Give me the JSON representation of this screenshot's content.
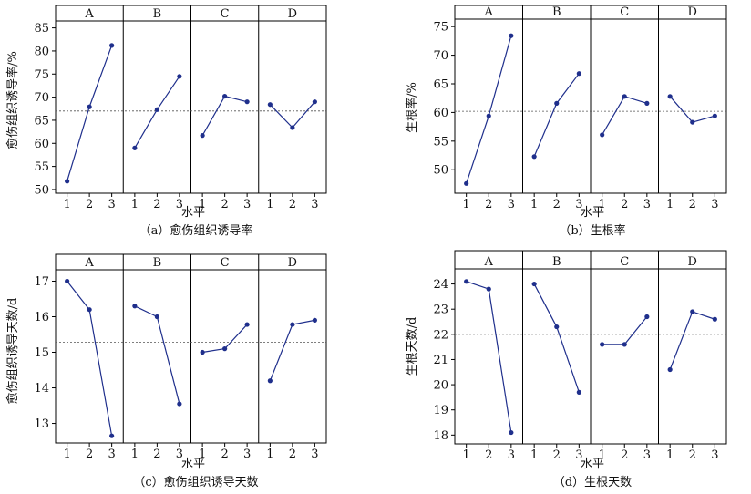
{
  "chart_data": [
    {
      "type": "line",
      "panel_labels": [
        "A",
        "B",
        "C",
        "D"
      ],
      "x": [
        "1",
        "2",
        "3"
      ],
      "series": [
        {
          "panel": "A",
          "values": [
            51.8,
            67.9,
            81.2
          ]
        },
        {
          "panel": "B",
          "values": [
            59.0,
            67.3,
            74.5
          ]
        },
        {
          "panel": "C",
          "values": [
            61.7,
            70.2,
            69.0
          ]
        },
        {
          "panel": "D",
          "values": [
            68.4,
            63.4,
            69.0
          ]
        }
      ],
      "yticks": [
        50,
        55,
        60,
        65,
        70,
        75,
        80,
        85
      ],
      "ylim": [
        49.2,
        86.5
      ],
      "reference_line": 67.0,
      "ylabel": "愈伤组织诱导率/%",
      "xlabel": "水平",
      "caption": "（a）愈伤组织诱导率"
    },
    {
      "type": "line",
      "panel_labels": [
        "A",
        "B",
        "C",
        "D"
      ],
      "x": [
        "1",
        "2",
        "3"
      ],
      "series": [
        {
          "panel": "A",
          "values": [
            47.6,
            59.4,
            73.4
          ]
        },
        {
          "panel": "B",
          "values": [
            52.3,
            61.6,
            66.8
          ]
        },
        {
          "panel": "C",
          "values": [
            56.1,
            62.8,
            61.6
          ]
        },
        {
          "panel": "D",
          "values": [
            62.8,
            58.3,
            59.4
          ]
        }
      ],
      "yticks": [
        50,
        55,
        60,
        65,
        70,
        75
      ],
      "ylim": [
        45.9,
        76.3
      ],
      "reference_line": 60.2,
      "ylabel": "生根率/%",
      "xlabel": "水平",
      "caption": "（b）生根率"
    },
    {
      "type": "line",
      "panel_labels": [
        "A",
        "B",
        "C",
        "D"
      ],
      "x": [
        "1",
        "2",
        "3"
      ],
      "series": [
        {
          "panel": "A",
          "values": [
            17.0,
            16.2,
            12.65
          ]
        },
        {
          "panel": "B",
          "values": [
            16.3,
            16.0,
            13.55
          ]
        },
        {
          "panel": "C",
          "values": [
            15.0,
            15.1,
            15.78
          ]
        },
        {
          "panel": "D",
          "values": [
            14.2,
            15.78,
            15.9
          ]
        }
      ],
      "yticks": [
        13,
        14,
        15,
        16,
        17
      ],
      "ylim": [
        12.45,
        17.32
      ],
      "reference_line": 15.28,
      "ylabel": "愈伤组织诱导天数/d",
      "xlabel": "水平",
      "caption": "（c）愈伤组织诱导天数"
    },
    {
      "type": "line",
      "panel_labels": [
        "A",
        "B",
        "C",
        "D"
      ],
      "x": [
        "1",
        "2",
        "3"
      ],
      "series": [
        {
          "panel": "A",
          "values": [
            24.1,
            23.8,
            18.1
          ]
        },
        {
          "panel": "B",
          "values": [
            24.0,
            22.3,
            19.7
          ]
        },
        {
          "panel": "C",
          "values": [
            21.6,
            21.6,
            22.7
          ]
        },
        {
          "panel": "D",
          "values": [
            20.6,
            22.9,
            22.6
          ]
        }
      ],
      "yticks": [
        18,
        19,
        20,
        21,
        22,
        23,
        24
      ],
      "ylim": [
        17.65,
        24.6
      ],
      "reference_line": 22.0,
      "ylabel": "生根天数/d",
      "xlabel": "水平",
      "caption": "（d）生根天数"
    }
  ],
  "colors": {
    "line": "#1f2f8c",
    "point": "#1f2f8c",
    "reference": "#555555",
    "frame": "#000000"
  }
}
